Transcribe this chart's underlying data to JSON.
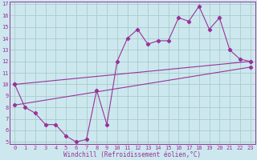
{
  "xlabel": "Windchill (Refroidissement éolien,°C)",
  "bg_color": "#cce8ee",
  "grid_color": "#a8cccc",
  "line_color": "#993399",
  "x_ticks": [
    0,
    1,
    2,
    3,
    4,
    5,
    6,
    7,
    8,
    9,
    10,
    11,
    12,
    13,
    14,
    15,
    16,
    17,
    18,
    19,
    20,
    21,
    22,
    23
  ],
  "y_ticks": [
    5,
    6,
    7,
    8,
    9,
    10,
    11,
    12,
    13,
    14,
    15,
    16,
    17
  ],
  "ylim": [
    4.8,
    17.2
  ],
  "xlim": [
    -0.5,
    23.5
  ],
  "series1_x": [
    0,
    1,
    2,
    3,
    4,
    5,
    6,
    7,
    8,
    9,
    10,
    11,
    12,
    13,
    14,
    15,
    16,
    17,
    18,
    19,
    20,
    21,
    22,
    23
  ],
  "series1_y": [
    10.0,
    8.0,
    7.5,
    6.5,
    6.5,
    5.5,
    5.0,
    5.2,
    9.5,
    6.5,
    12.0,
    14.0,
    14.8,
    13.5,
    13.8,
    13.8,
    15.8,
    15.5,
    16.8,
    14.8,
    15.8,
    13.0,
    12.2,
    12.0
  ],
  "line2_x": [
    0,
    23
  ],
  "line2_y": [
    10.0,
    12.0
  ],
  "line3_x": [
    0,
    23
  ],
  "line3_y": [
    8.2,
    11.5
  ],
  "marker": "D",
  "marker_size": 2.2,
  "line_width": 0.8,
  "tick_fontsize": 5.0,
  "xlabel_fontsize": 5.5
}
